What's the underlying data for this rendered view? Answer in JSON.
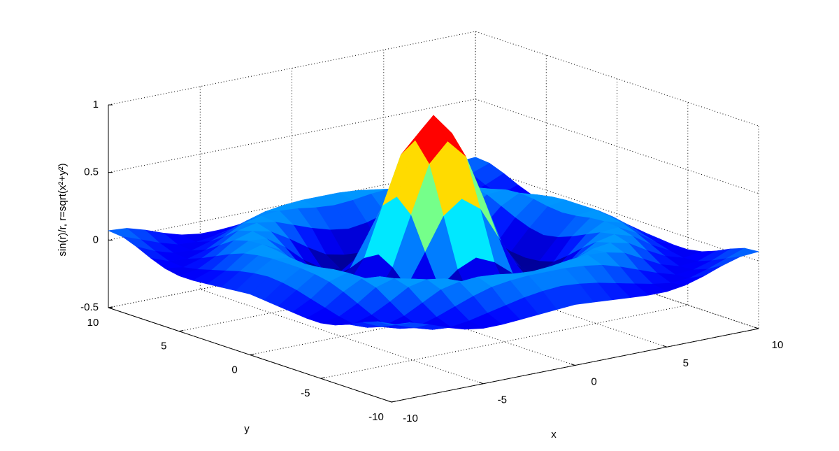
{
  "chart_data": {
    "type": "surface",
    "xlabel": "x",
    "ylabel": "y",
    "zlabel": "sin(r)/r,  r=sqrt(x²+y²)",
    "x": [
      -10,
      -9,
      -8,
      -7,
      -6,
      -5,
      -4,
      -3,
      -2,
      -1,
      0,
      1,
      2,
      3,
      4,
      5,
      6,
      7,
      8,
      9,
      10
    ],
    "y": [
      -10,
      -9,
      -8,
      -7,
      -6,
      -5,
      -4,
      -3,
      -2,
      -1,
      0,
      1,
      2,
      3,
      4,
      5,
      6,
      7,
      8,
      9,
      10
    ],
    "z": [
      [
        0.07,
        0.06,
        0.02,
        -0.03,
        -0.07,
        -0.09,
        -0.09,
        -0.08,
        -0.07,
        -0.06,
        -0.05,
        -0.06,
        -0.07,
        -0.08,
        -0.09,
        -0.09,
        -0.07,
        -0.03,
        0.02,
        0.06,
        0.07
      ],
      [
        0.06,
        0.01,
        -0.04,
        -0.08,
        -0.09,
        -0.07,
        -0.04,
        -0.01,
        0.02,
        0.04,
        0.05,
        0.04,
        0.02,
        -0.01,
        -0.04,
        -0.07,
        -0.09,
        -0.08,
        -0.04,
        0.01,
        0.06
      ],
      [
        0.02,
        -0.04,
        -0.08,
        -0.09,
        -0.05,
        0,
        0.05,
        0.09,
        0.11,
        0.12,
        0.12,
        0.12,
        0.11,
        0.09,
        0.05,
        0,
        -0.05,
        -0.09,
        -0.08,
        -0.04,
        0.02
      ],
      [
        -0.03,
        -0.08,
        -0.09,
        -0.05,
        0.02,
        0.09,
        0.12,
        0.13,
        0.12,
        0.1,
        0.09,
        0.1,
        0.12,
        0.13,
        0.12,
        0.09,
        0.02,
        -0.05,
        -0.09,
        -0.08,
        -0.03
      ],
      [
        -0.07,
        -0.09,
        -0.05,
        0.02,
        0.1,
        0.13,
        0.11,
        0.06,
        0.01,
        -0.03,
        -0.05,
        -0.03,
        0.01,
        0.06,
        0.11,
        0.13,
        0.1,
        0.02,
        -0.05,
        -0.09,
        -0.07
      ],
      [
        -0.09,
        -0.07,
        0,
        0.09,
        0.13,
        0.1,
        0.02,
        -0.07,
        -0.15,
        -0.18,
        -0.19,
        -0.18,
        -0.15,
        -0.07,
        0.02,
        0.1,
        0.13,
        0.09,
        0,
        -0.07,
        -0.09
      ],
      [
        -0.09,
        -0.04,
        0.05,
        0.12,
        0.11,
        0.02,
        -0.1,
        -0.19,
        -0.22,
        -0.2,
        -0.19,
        -0.2,
        -0.22,
        -0.19,
        -0.1,
        0.02,
        0.11,
        0.12,
        0.05,
        -0.04,
        -0.09
      ],
      [
        -0.08,
        -0.01,
        0.09,
        0.13,
        0.06,
        -0.07,
        -0.19,
        -0.21,
        -0.12,
        -0.01,
        0.05,
        -0.01,
        -0.12,
        -0.21,
        -0.19,
        -0.07,
        0.06,
        0.13,
        0.09,
        -0.01,
        -0.08
      ],
      [
        -0.07,
        0.02,
        0.11,
        0.12,
        0.01,
        -0.15,
        -0.22,
        -0.12,
        0.11,
        0.35,
        0.45,
        0.35,
        0.11,
        -0.12,
        -0.22,
        -0.15,
        0.01,
        0.12,
        0.11,
        0.02,
        -0.07
      ],
      [
        -0.06,
        0.04,
        0.12,
        0.1,
        -0.03,
        -0.18,
        -0.2,
        -0.01,
        0.35,
        0.7,
        0.84,
        0.7,
        0.35,
        -0.01,
        -0.2,
        -0.18,
        -0.03,
        0.1,
        0.12,
        0.04,
        -0.06
      ],
      [
        -0.05,
        0.05,
        0.12,
        0.09,
        -0.05,
        -0.19,
        -0.19,
        0.05,
        0.45,
        0.84,
        1,
        0.84,
        0.45,
        0.05,
        -0.19,
        -0.19,
        -0.05,
        0.09,
        0.12,
        0.05,
        -0.05
      ],
      [
        -0.06,
        0.04,
        0.12,
        0.1,
        -0.03,
        -0.18,
        -0.2,
        -0.01,
        0.35,
        0.7,
        0.84,
        0.7,
        0.35,
        -0.01,
        -0.2,
        -0.18,
        -0.03,
        0.1,
        0.12,
        0.04,
        -0.06
      ],
      [
        -0.07,
        0.02,
        0.11,
        0.12,
        0.01,
        -0.15,
        -0.22,
        -0.12,
        0.11,
        0.35,
        0.45,
        0.35,
        0.11,
        -0.12,
        -0.22,
        -0.15,
        0.01,
        0.12,
        0.11,
        0.02,
        -0.07
      ],
      [
        -0.08,
        -0.01,
        0.09,
        0.13,
        0.06,
        -0.07,
        -0.19,
        -0.21,
        -0.12,
        -0.01,
        0.05,
        -0.01,
        -0.12,
        -0.21,
        -0.19,
        -0.07,
        0.06,
        0.13,
        0.09,
        -0.01,
        -0.08
      ],
      [
        -0.09,
        -0.04,
        0.05,
        0.12,
        0.11,
        0.02,
        -0.1,
        -0.19,
        -0.22,
        -0.2,
        -0.19,
        -0.2,
        -0.22,
        -0.19,
        -0.1,
        0.02,
        0.11,
        0.12,
        0.05,
        -0.04,
        -0.09
      ],
      [
        -0.09,
        -0.07,
        0,
        0.09,
        0.13,
        0.1,
        0.02,
        -0.07,
        -0.15,
        -0.18,
        -0.19,
        -0.18,
        -0.15,
        -0.07,
        0.02,
        0.1,
        0.13,
        0.09,
        0,
        -0.07,
        -0.09
      ],
      [
        -0.07,
        -0.09,
        -0.05,
        0.02,
        0.1,
        0.13,
        0.11,
        0.06,
        0.01,
        -0.03,
        -0.05,
        -0.03,
        0.01,
        0.06,
        0.11,
        0.13,
        0.1,
        0.02,
        -0.05,
        -0.09,
        -0.07
      ],
      [
        -0.03,
        -0.08,
        -0.09,
        -0.05,
        0.02,
        0.09,
        0.12,
        0.13,
        0.12,
        0.1,
        0.09,
        0.1,
        0.12,
        0.13,
        0.12,
        0.09,
        0.02,
        -0.05,
        -0.09,
        -0.08,
        -0.03
      ],
      [
        0.02,
        -0.04,
        -0.08,
        -0.09,
        -0.05,
        0,
        0.05,
        0.09,
        0.11,
        0.12,
        0.12,
        0.12,
        0.11,
        0.09,
        0.05,
        0,
        -0.05,
        -0.09,
        -0.08,
        -0.04,
        0.02
      ],
      [
        0.06,
        0.01,
        -0.04,
        -0.08,
        -0.09,
        -0.07,
        -0.04,
        -0.01,
        0.02,
        0.04,
        0.05,
        0.04,
        0.02,
        -0.01,
        -0.04,
        -0.07,
        -0.09,
        -0.08,
        -0.04,
        0.01,
        0.06
      ],
      [
        0.07,
        0.06,
        0.02,
        -0.03,
        -0.07,
        -0.09,
        -0.09,
        -0.08,
        -0.07,
        -0.06,
        -0.05,
        -0.06,
        -0.07,
        -0.08,
        -0.09,
        -0.09,
        -0.07,
        -0.03,
        0.02,
        0.06,
        0.07
      ]
    ],
    "xlim": [
      -10,
      10
    ],
    "ylim": [
      -10,
      10
    ],
    "zlim": [
      -0.5,
      1
    ],
    "xticks": [
      -10,
      -5,
      0,
      5,
      10
    ],
    "yticks": [
      -10,
      -5,
      0,
      5,
      10
    ],
    "zticks": [
      -0.5,
      0,
      0.5,
      1
    ],
    "grid": true,
    "colormap": "jet"
  }
}
